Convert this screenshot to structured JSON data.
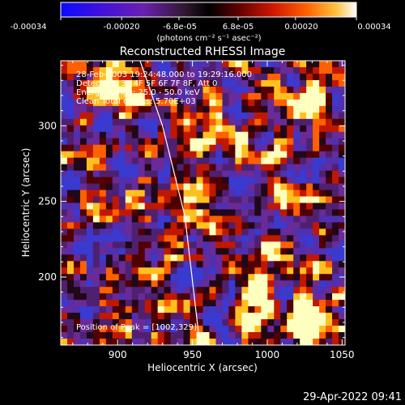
{
  "colorbar": {
    "tick_labels": [
      "-0.00034",
      "-0.00020",
      "-6.8e-05",
      "6.8e-05",
      "0.00020",
      "0.00034"
    ],
    "units_label": "(photons cm⁻² s⁻¹ asec⁻²)",
    "range": [
      -0.00034,
      0.00034
    ],
    "colors": [
      "#1010ff",
      "#5010c0",
      "#301030",
      "#000000",
      "#500000",
      "#c01000",
      "#ff5000",
      "#ffa000",
      "#ffffa0",
      "#ffffff"
    ]
  },
  "image": {
    "title": "Reconstructed RHESSI Image",
    "annotation_lines": [
      "28-Feb-2003 19:24:48.000 to 19:29:16.000",
      "Detectors: 3F 4F 5F 6F 7F 8F, Att 0",
      "Energy Range: 25.0 - 50.0 keV",
      "Clean    Total counts: 5.70E+03"
    ],
    "peak_text": "Position of Peak = [1002,329]",
    "xlabel": "Heliocentric X (arcsec)",
    "ylabel": "Heliocentric Y (arcsec)",
    "x_range": [
      862,
      1052
    ],
    "y_range": [
      155,
      343
    ],
    "x_ticks": [
      900,
      950,
      1000,
      1050
    ],
    "y_ticks": [
      200,
      250,
      300
    ],
    "x_tick_labels": [
      "900",
      "950",
      "1000",
      "1050"
    ],
    "y_tick_labels": [
      "200",
      "250",
      "300"
    ],
    "limb_arc": [
      [
        915,
        343
      ],
      [
        930,
        300
      ],
      [
        945,
        240
      ],
      [
        955,
        155
      ]
    ]
  },
  "timestamp": "29-Apr-2022 09:41"
}
